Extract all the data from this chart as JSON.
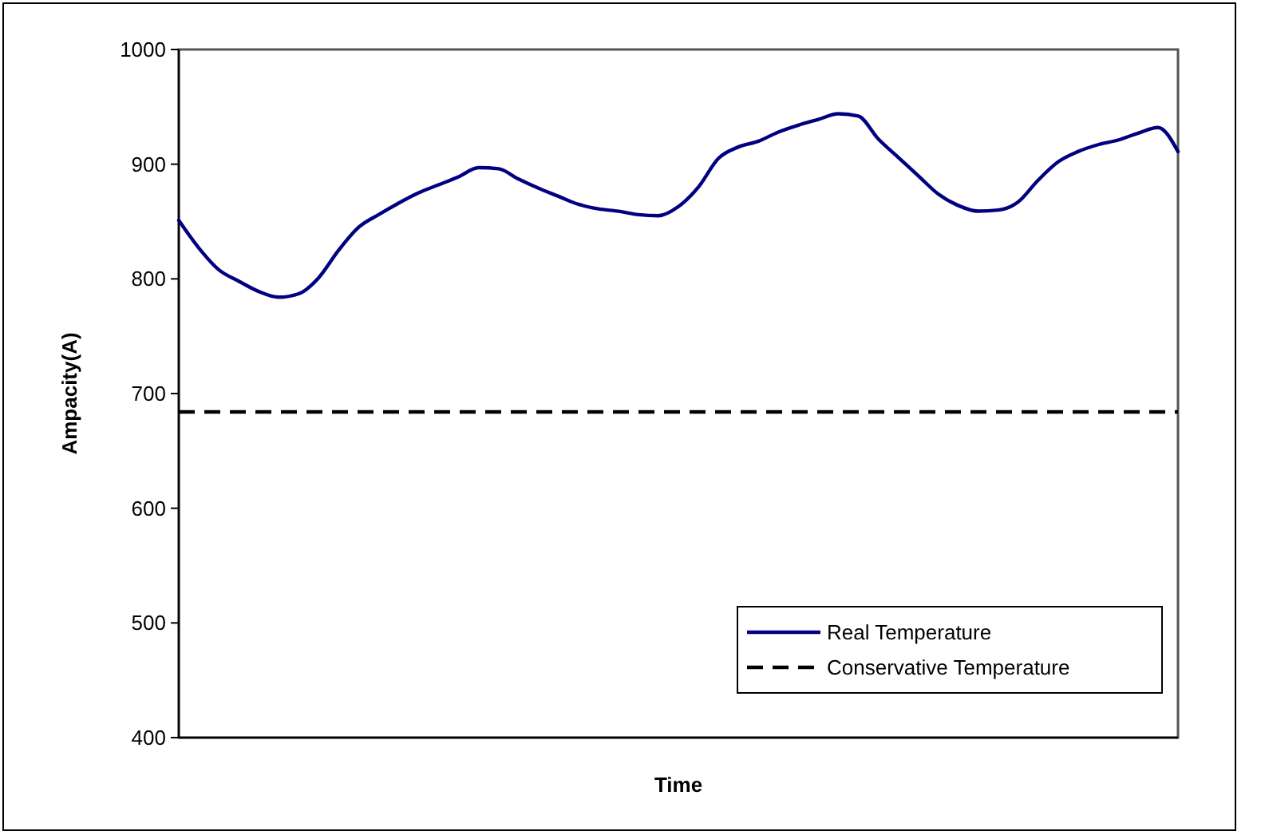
{
  "chart_data": {
    "type": "line",
    "xlabel": "Time",
    "ylabel": "Ampacity(A)",
    "categories": [
      null,
      null,
      null,
      null,
      null,
      null,
      null,
      null,
      null,
      null,
      null,
      null,
      null,
      null,
      null,
      null,
      null,
      null,
      null,
      null,
      null,
      null,
      null,
      null,
      null,
      null,
      null,
      null,
      null,
      null,
      null,
      null,
      null,
      null,
      null,
      null,
      null,
      null,
      null,
      null,
      null,
      null,
      null,
      null,
      null,
      null,
      null,
      null,
      null,
      null,
      null
    ],
    "series": [
      {
        "name": "Real Temperature",
        "color": "#000080",
        "values": [
          851,
          827,
          808,
          798,
          789,
          784,
          787,
          801,
          825,
          845,
          856,
          866,
          875,
          882,
          889,
          897,
          896,
          887,
          879,
          872,
          865,
          861,
          859,
          856,
          855,
          863,
          880,
          905,
          915,
          920,
          928,
          934,
          939,
          944,
          942,
          922,
          906,
          890,
          874,
          864,
          859,
          860,
          867,
          886,
          902,
          911,
          917,
          921,
          927,
          932,
          911
        ]
      }
    ],
    "ref_lines": [
      {
        "axis": "y",
        "value": 684,
        "label": "Conservative Temperature",
        "color": "#000000",
        "line_style": "dashed"
      }
    ],
    "ylim": [
      400,
      1000
    ],
    "yticks": [
      400,
      500,
      600,
      700,
      800,
      900,
      1000
    ],
    "grid": false,
    "legend": "bottom right",
    "tick_labels": "y",
    "line_style": "solid"
  }
}
